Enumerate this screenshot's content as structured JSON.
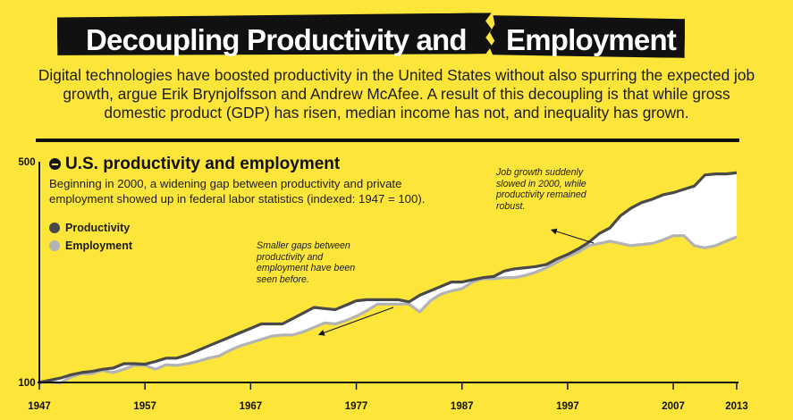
{
  "header": {
    "title_left": "Decoupling Productivity and",
    "title_right": "Employment",
    "intro": "Digital technologies have boosted productivity in the United States without also spurring the expected job growth, argue Erik Brynjolfsson and Andrew McAfee. A result of this decoupling is that while gross domestic product (GDP) has risen, median income has not, and inequality has grown."
  },
  "chart_header": {
    "title": "U.S. productivity and employment",
    "subtitle": "Beginning in 2000, a widening gap between productivity and private employment showed up in federal labor statistics (indexed: 1947 = 100)."
  },
  "annotations": [
    {
      "text": "Smaller gaps between productivity and employment have been seen before.",
      "x": 1980,
      "y": 268
    },
    {
      "text": "Job growth suddenly slowed in 2000, while productivity remained robust.",
      "x": 2000,
      "y": 365
    }
  ],
  "colors": {
    "background": "#fde53a",
    "productivity": "#4a4a4a",
    "employment": "#b3b3b3",
    "gap_fill": "#ffffff"
  },
  "chart_data": {
    "type": "area",
    "title": "U.S. productivity and employment",
    "subtitle": "Beginning in 2000, a widening gap between productivity and private employment showed up in federal labor statistics (indexed: 1947 = 100).",
    "xlabel": "",
    "ylabel": "",
    "xlim": [
      1947,
      2013
    ],
    "ylim": [
      100,
      500
    ],
    "y_ticks": [
      500,
      100
    ],
    "x_ticks": [
      1947,
      1957,
      1967,
      1977,
      1987,
      1997,
      2007,
      2013
    ],
    "grid": false,
    "legend_position": "top-left",
    "series": [
      {
        "name": "Productivity",
        "color": "#4a4a4a",
        "x": [
          1947,
          1948,
          1949,
          1950,
          1951,
          1952,
          1953,
          1954,
          1955,
          1956,
          1957,
          1958,
          1959,
          1960,
          1961,
          1962,
          1963,
          1964,
          1965,
          1966,
          1967,
          1968,
          1969,
          1970,
          1971,
          1972,
          1973,
          1974,
          1975,
          1976,
          1977,
          1978,
          1979,
          1980,
          1981,
          1982,
          1983,
          1984,
          1985,
          1986,
          1987,
          1988,
          1989,
          1990,
          1991,
          1992,
          1993,
          1994,
          1995,
          1996,
          1997,
          1998,
          1999,
          2000,
          2001,
          2002,
          2003,
          2004,
          2005,
          2006,
          2007,
          2008,
          2009,
          2010,
          2011,
          2012,
          2013
        ],
        "values": [
          100,
          104,
          108,
          114,
          118,
          120,
          124,
          126,
          134,
          134,
          133,
          138,
          144,
          144,
          150,
          158,
          166,
          174,
          182,
          190,
          198,
          206,
          206,
          206,
          216,
          226,
          236,
          234,
          232,
          240,
          248,
          250,
          250,
          250,
          250,
          246,
          258,
          266,
          274,
          282,
          282,
          286,
          290,
          292,
          302,
          306,
          308,
          310,
          314,
          324,
          332,
          342,
          354,
          370,
          380,
          402,
          416,
          426,
          432,
          440,
          444,
          450,
          456,
          476,
          478,
          478,
          480
        ]
      },
      {
        "name": "Employment",
        "color": "#b3b3b3",
        "x": [
          1947,
          1948,
          1949,
          1950,
          1951,
          1952,
          1953,
          1954,
          1955,
          1956,
          1957,
          1958,
          1959,
          1960,
          1961,
          1962,
          1963,
          1964,
          1965,
          1966,
          1967,
          1968,
          1969,
          1970,
          1971,
          1972,
          1973,
          1974,
          1975,
          1976,
          1977,
          1978,
          1979,
          1980,
          1981,
          1982,
          1983,
          1984,
          1985,
          1986,
          1987,
          1988,
          1989,
          1990,
          1991,
          1992,
          1993,
          1994,
          1995,
          1996,
          1997,
          1998,
          1999,
          2000,
          2001,
          2002,
          2003,
          2004,
          2005,
          2006,
          2007,
          2008,
          2009,
          2010,
          2011,
          2012,
          2013
        ],
        "values": [
          100,
          101,
          99,
          110,
          116,
          116,
          122,
          118,
          124,
          131,
          131,
          124,
          132,
          131,
          134,
          138,
          144,
          148,
          158,
          166,
          172,
          178,
          184,
          186,
          186,
          192,
          200,
          208,
          206,
          212,
          220,
          230,
          242,
          242,
          242,
          242,
          228,
          248,
          260,
          266,
          270,
          282,
          288,
          288,
          290,
          290,
          294,
          300,
          308,
          318,
          328,
          336,
          348,
          352,
          356,
          352,
          348,
          350,
          352,
          358,
          366,
          366,
          348,
          344,
          348,
          356,
          364
        ]
      }
    ]
  }
}
